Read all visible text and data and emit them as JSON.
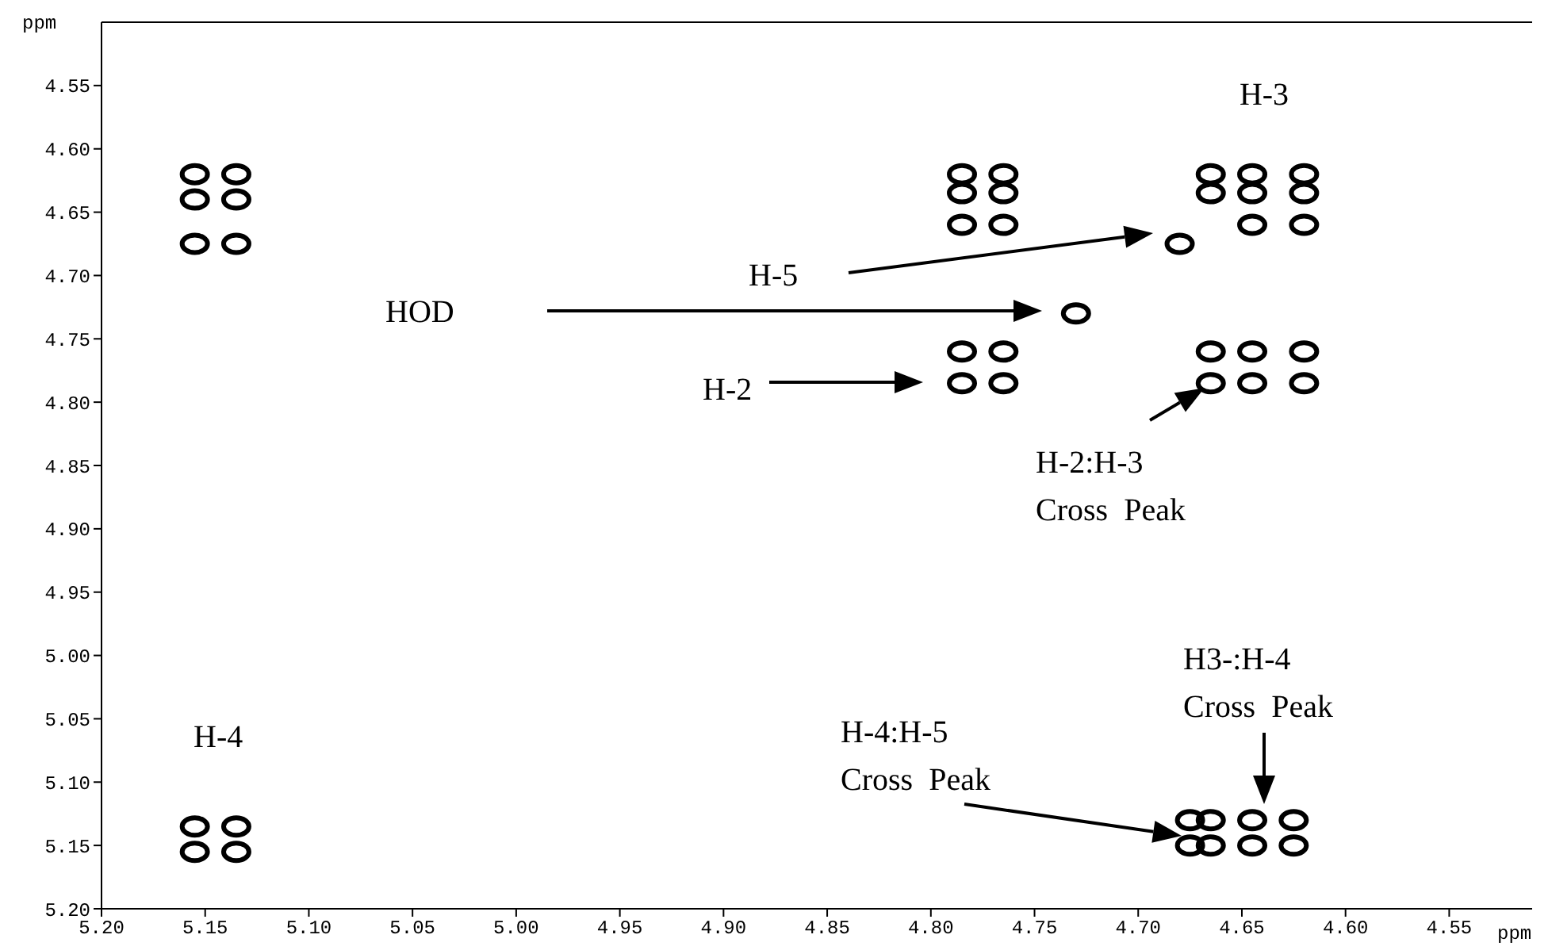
{
  "chart_data": {
    "type": "scatter",
    "xlabel": "ppm",
    "ylabel": "ppm",
    "marker": "circle",
    "xlim": [
      5.2,
      4.51
    ],
    "ylim": [
      5.2,
      4.5
    ],
    "xticks": [
      {
        "value": 5.2,
        "label": "5.20"
      },
      {
        "value": 5.15,
        "label": "5.15"
      },
      {
        "value": 5.1,
        "label": "5.10"
      },
      {
        "value": 5.05,
        "label": "5.05"
      },
      {
        "value": 5.0,
        "label": "5.00"
      },
      {
        "value": 4.95,
        "label": "4.95"
      },
      {
        "value": 4.9,
        "label": "4.90"
      },
      {
        "value": 4.85,
        "label": "4.85"
      },
      {
        "value": 4.8,
        "label": "4.80"
      },
      {
        "value": 4.75,
        "label": "4.75"
      },
      {
        "value": 4.7,
        "label": "4.70"
      },
      {
        "value": 4.65,
        "label": "4.65"
      },
      {
        "value": 4.6,
        "label": "4.60"
      },
      {
        "value": 4.55,
        "label": "4.55"
      }
    ],
    "yticks": [
      {
        "value": 4.55,
        "label": "4.55"
      },
      {
        "value": 4.6,
        "label": "4.60"
      },
      {
        "value": 4.65,
        "label": "4.65"
      },
      {
        "value": 4.7,
        "label": "4.70"
      },
      {
        "value": 4.75,
        "label": "4.75"
      },
      {
        "value": 4.8,
        "label": "4.80"
      },
      {
        "value": 4.85,
        "label": "4.85"
      },
      {
        "value": 4.9,
        "label": "4.90"
      },
      {
        "value": 4.95,
        "label": "4.95"
      },
      {
        "value": 5.0,
        "label": "5.00"
      },
      {
        "value": 5.05,
        "label": "5.05"
      },
      {
        "value": 5.1,
        "label": "5.10"
      },
      {
        "value": 5.15,
        "label": "5.15"
      },
      {
        "value": 5.2,
        "label": "5.20"
      }
    ],
    "series": [
      {
        "color": "#000000",
        "x": [
          5.155,
          5.135,
          5.155,
          5.135,
          5.155,
          5.135,
          4.785,
          4.765,
          4.785,
          4.765,
          4.785,
          4.765,
          4.785,
          4.765,
          4.785,
          4.765,
          4.73,
          4.665,
          4.645,
          4.62,
          4.665,
          4.645,
          4.62,
          4.645,
          4.62,
          4.68,
          4.665,
          4.645,
          4.62,
          4.665,
          4.645,
          4.62,
          4.675,
          4.665,
          4.645,
          4.625,
          4.675,
          4.665,
          4.645,
          4.625,
          5.155,
          5.135,
          5.155,
          5.135
        ],
        "values": [
          4.62,
          4.62,
          4.64,
          4.64,
          4.675,
          4.675,
          4.62,
          4.62,
          4.635,
          4.635,
          4.66,
          4.66,
          4.76,
          4.76,
          4.785,
          4.785,
          4.73,
          4.62,
          4.62,
          4.62,
          4.635,
          4.635,
          4.635,
          4.66,
          4.66,
          4.675,
          4.76,
          4.76,
          4.76,
          4.785,
          4.785,
          4.785,
          5.13,
          5.13,
          5.13,
          5.13,
          5.15,
          5.15,
          5.15,
          5.15,
          5.135,
          5.135,
          5.155,
          5.155
        ]
      }
    ],
    "annotations": [
      "H-3",
      "H-5",
      "HOD",
      "H-2",
      {
        "text": "H-2:H-3\nCross  Peak",
        "x": 4.665,
        "y": 4.785
      },
      "H3-:H-4\nCross  Peak",
      "H-4:H-5\nCross  Peak",
      "H-4"
    ]
  }
}
